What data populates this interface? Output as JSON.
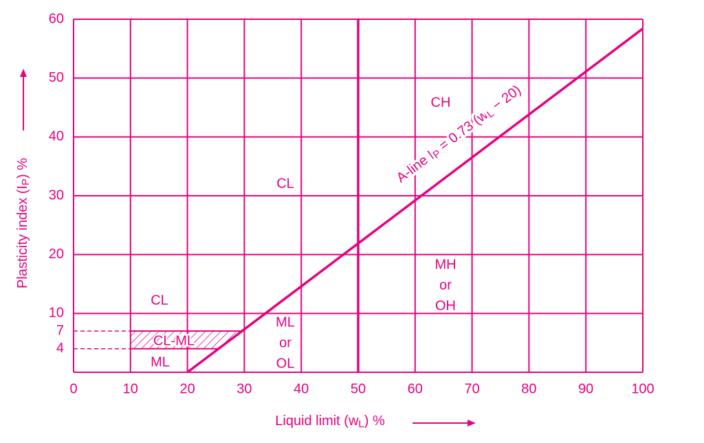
{
  "chart_data": {
    "type": "line",
    "x_label_parts": [
      "Liquid limit (w",
      "L",
      ") %"
    ],
    "y_label_parts": [
      "Plasticity index (I",
      "P",
      ") %"
    ],
    "xlim": [
      0,
      100
    ],
    "ylim": [
      0,
      60
    ],
    "xticks": [
      0,
      10,
      20,
      30,
      40,
      50,
      60,
      70,
      80,
      90,
      100
    ],
    "yticks": [
      10,
      20,
      30,
      40,
      50,
      60
    ],
    "dashed_yticks": [
      4,
      7
    ],
    "hatch_from_x": 10,
    "vline": 50,
    "grid": true,
    "color": "#e6007e",
    "series": [
      {
        "label_parts": [
          "A-line I",
          "P",
          " = 0.73 (w",
          "L",
          " − 20)"
        ],
        "color": "#e6007e",
        "x": [
          20,
          100
        ],
        "values": [
          0,
          58.4
        ]
      }
    ],
    "regions": [
      {
        "lines": [
          "CH"
        ]
      },
      {
        "lines": [
          "CL"
        ]
      },
      {
        "lines": [
          "MH",
          "or",
          "OH"
        ]
      },
      {
        "lines": [
          "CL"
        ]
      },
      {
        "lines": [
          "ML",
          "or",
          "OL"
        ]
      },
      {
        "lines": [
          "CL-ML"
        ]
      },
      {
        "lines": [
          "ML"
        ]
      }
    ]
  }
}
